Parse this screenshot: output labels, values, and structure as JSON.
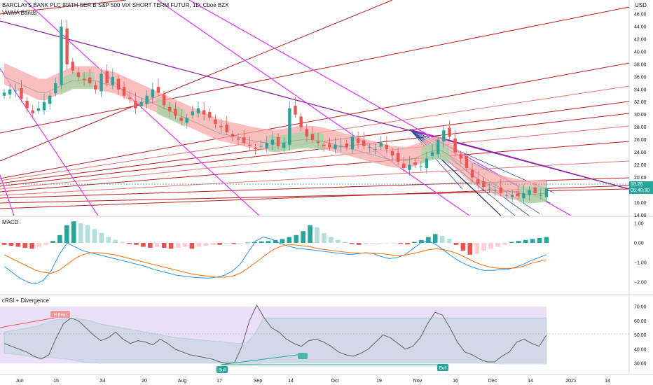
{
  "header": {
    "title": "BARCLAYS BANK PLC IPATH SER B S&P 500 VIX SHORT TERM FUTUR, 1D, Cboe BZX",
    "indicator1": "VWMA Bands",
    "currency": "USD"
  },
  "panes": {
    "macd_label": "MACD",
    "crsi_label": "cRSI + Divergence"
  },
  "price_tags": {
    "last_price": "18.26",
    "countdown": "05:40:30"
  },
  "badges": {
    "h_bear": "H Bear",
    "bull": "Bull"
  },
  "colors": {
    "up": "#26a69a",
    "down": "#ef5350",
    "band_red": "#f7a8a8",
    "band_green": "#a5d6a7",
    "magenta": "#e040fb",
    "purple": "#8e24aa",
    "maroon": "#b71c1c",
    "navy": "#1a237e",
    "crsi_bg": "#e1d5f5",
    "macd_line": "#2196f3",
    "signal_line": "#ff6d00"
  },
  "chart_data": [
    {
      "type": "candlestick",
      "title": "BARCLAYS BANK PLC IPATH SER B S&P 500 VIX SHORT TERM FUTUR, 1D, Cboe BZX",
      "y_ticks": [
        "46.00",
        "44.00",
        "42.00",
        "40.00",
        "38.00",
        "36.00",
        "34.00",
        "32.00",
        "30.00",
        "28.00",
        "26.00",
        "24.00",
        "22.00",
        "20.00",
        "18.00",
        "16.00",
        "14.00"
      ],
      "y_tick_values": [
        46,
        44,
        42,
        40,
        38,
        36,
        34,
        32,
        30,
        28,
        26,
        24,
        22,
        20,
        18,
        16,
        14
      ],
      "x_ticks": [
        "Jun",
        "15",
        "Jul",
        "20",
        "Aug",
        "17",
        "Sep",
        "14",
        "Oct",
        "19",
        "Nov",
        "16",
        "Dec",
        "14",
        "2021",
        "14"
      ],
      "x_tick_dates": [
        "2020-06-01",
        "2020-06-15",
        "2020-07-01",
        "2020-07-20",
        "2020-08-03",
        "2020-08-17",
        "2020-09-01",
        "2020-09-14",
        "2020-10-01",
        "2020-10-19",
        "2020-11-02",
        "2020-11-16",
        "2020-12-01",
        "2020-12-14",
        "2021-01-01",
        "2021-01-14"
      ],
      "ylim": [
        13,
        47
      ],
      "close_approx": [
        33.5,
        34,
        33.8,
        32.5,
        31,
        30.2,
        31,
        32,
        33,
        35,
        44,
        38,
        37,
        36,
        35.5,
        35,
        34,
        36.5,
        35,
        36,
        34,
        33,
        32.5,
        31,
        32,
        33,
        34,
        33.5,
        31.5,
        30.5,
        29.8,
        29,
        29.5,
        30.5,
        31,
        30,
        29.5,
        28.5,
        28,
        27.2,
        26.5,
        26,
        25.5,
        25,
        24.5,
        25,
        25.5,
        26,
        25,
        25.5,
        31,
        30,
        28,
        26.5,
        26,
        25.5,
        25,
        24.8,
        25.2,
        25,
        24.8,
        26.5,
        25.5,
        25,
        24.8,
        24.5,
        25.5,
        24.5,
        23.5,
        22.5,
        21.5,
        22,
        22,
        21.8,
        23,
        24,
        26,
        27.5,
        26.5,
        24,
        23,
        21.5,
        20,
        19,
        18.5,
        18.2,
        18,
        17.5,
        17.2,
        17.2,
        17,
        17.5,
        18,
        17.5,
        17.2,
        18.26
      ],
      "vwma_band_center": [
        36,
        35.5,
        35,
        34.5,
        34,
        33.5,
        33.5,
        34,
        34.5,
        35,
        35.5,
        35.5,
        35.5,
        35.5,
        35,
        34.8,
        34.5,
        34,
        33.5,
        33,
        32.5,
        32,
        31.5,
        31,
        30.5,
        30,
        29.5,
        29,
        28.5,
        28,
        27.5,
        27,
        26.8,
        26.5,
        26.3,
        26,
        25.8,
        25.6,
        25.5,
        25.4,
        25.5,
        25.7,
        25.9,
        26,
        26,
        25.9,
        25.7,
        25.4,
        25.1,
        24.8,
        24.5,
        24.2,
        23.9,
        23.6,
        23.3,
        23,
        22.8,
        22.7,
        22.7,
        23,
        23.5,
        24,
        24.3,
        24.2,
        23.5,
        22.5,
        21.5,
        20.5,
        19.8,
        19.2,
        18.7,
        18.3,
        18,
        17.7,
        17.5,
        17.3,
        17.3,
        17.4,
        17.5
      ]
    },
    {
      "type": "bar",
      "title": "MACD",
      "y_ticks": [
        "1.00",
        "0.00",
        "−1.00",
        "−2.00"
      ],
      "y_tick_values": [
        1,
        0,
        -1,
        -2
      ],
      "ylim": [
        -2.4,
        1.3
      ]
    },
    {
      "type": "line",
      "title": "cRSI + Divergence",
      "y_ticks": [
        "70.00",
        "60.00",
        "50.00",
        "40.00",
        "30.00"
      ],
      "y_tick_values": [
        70,
        60,
        50,
        40,
        30
      ],
      "ylim": [
        26,
        72
      ]
    }
  ]
}
